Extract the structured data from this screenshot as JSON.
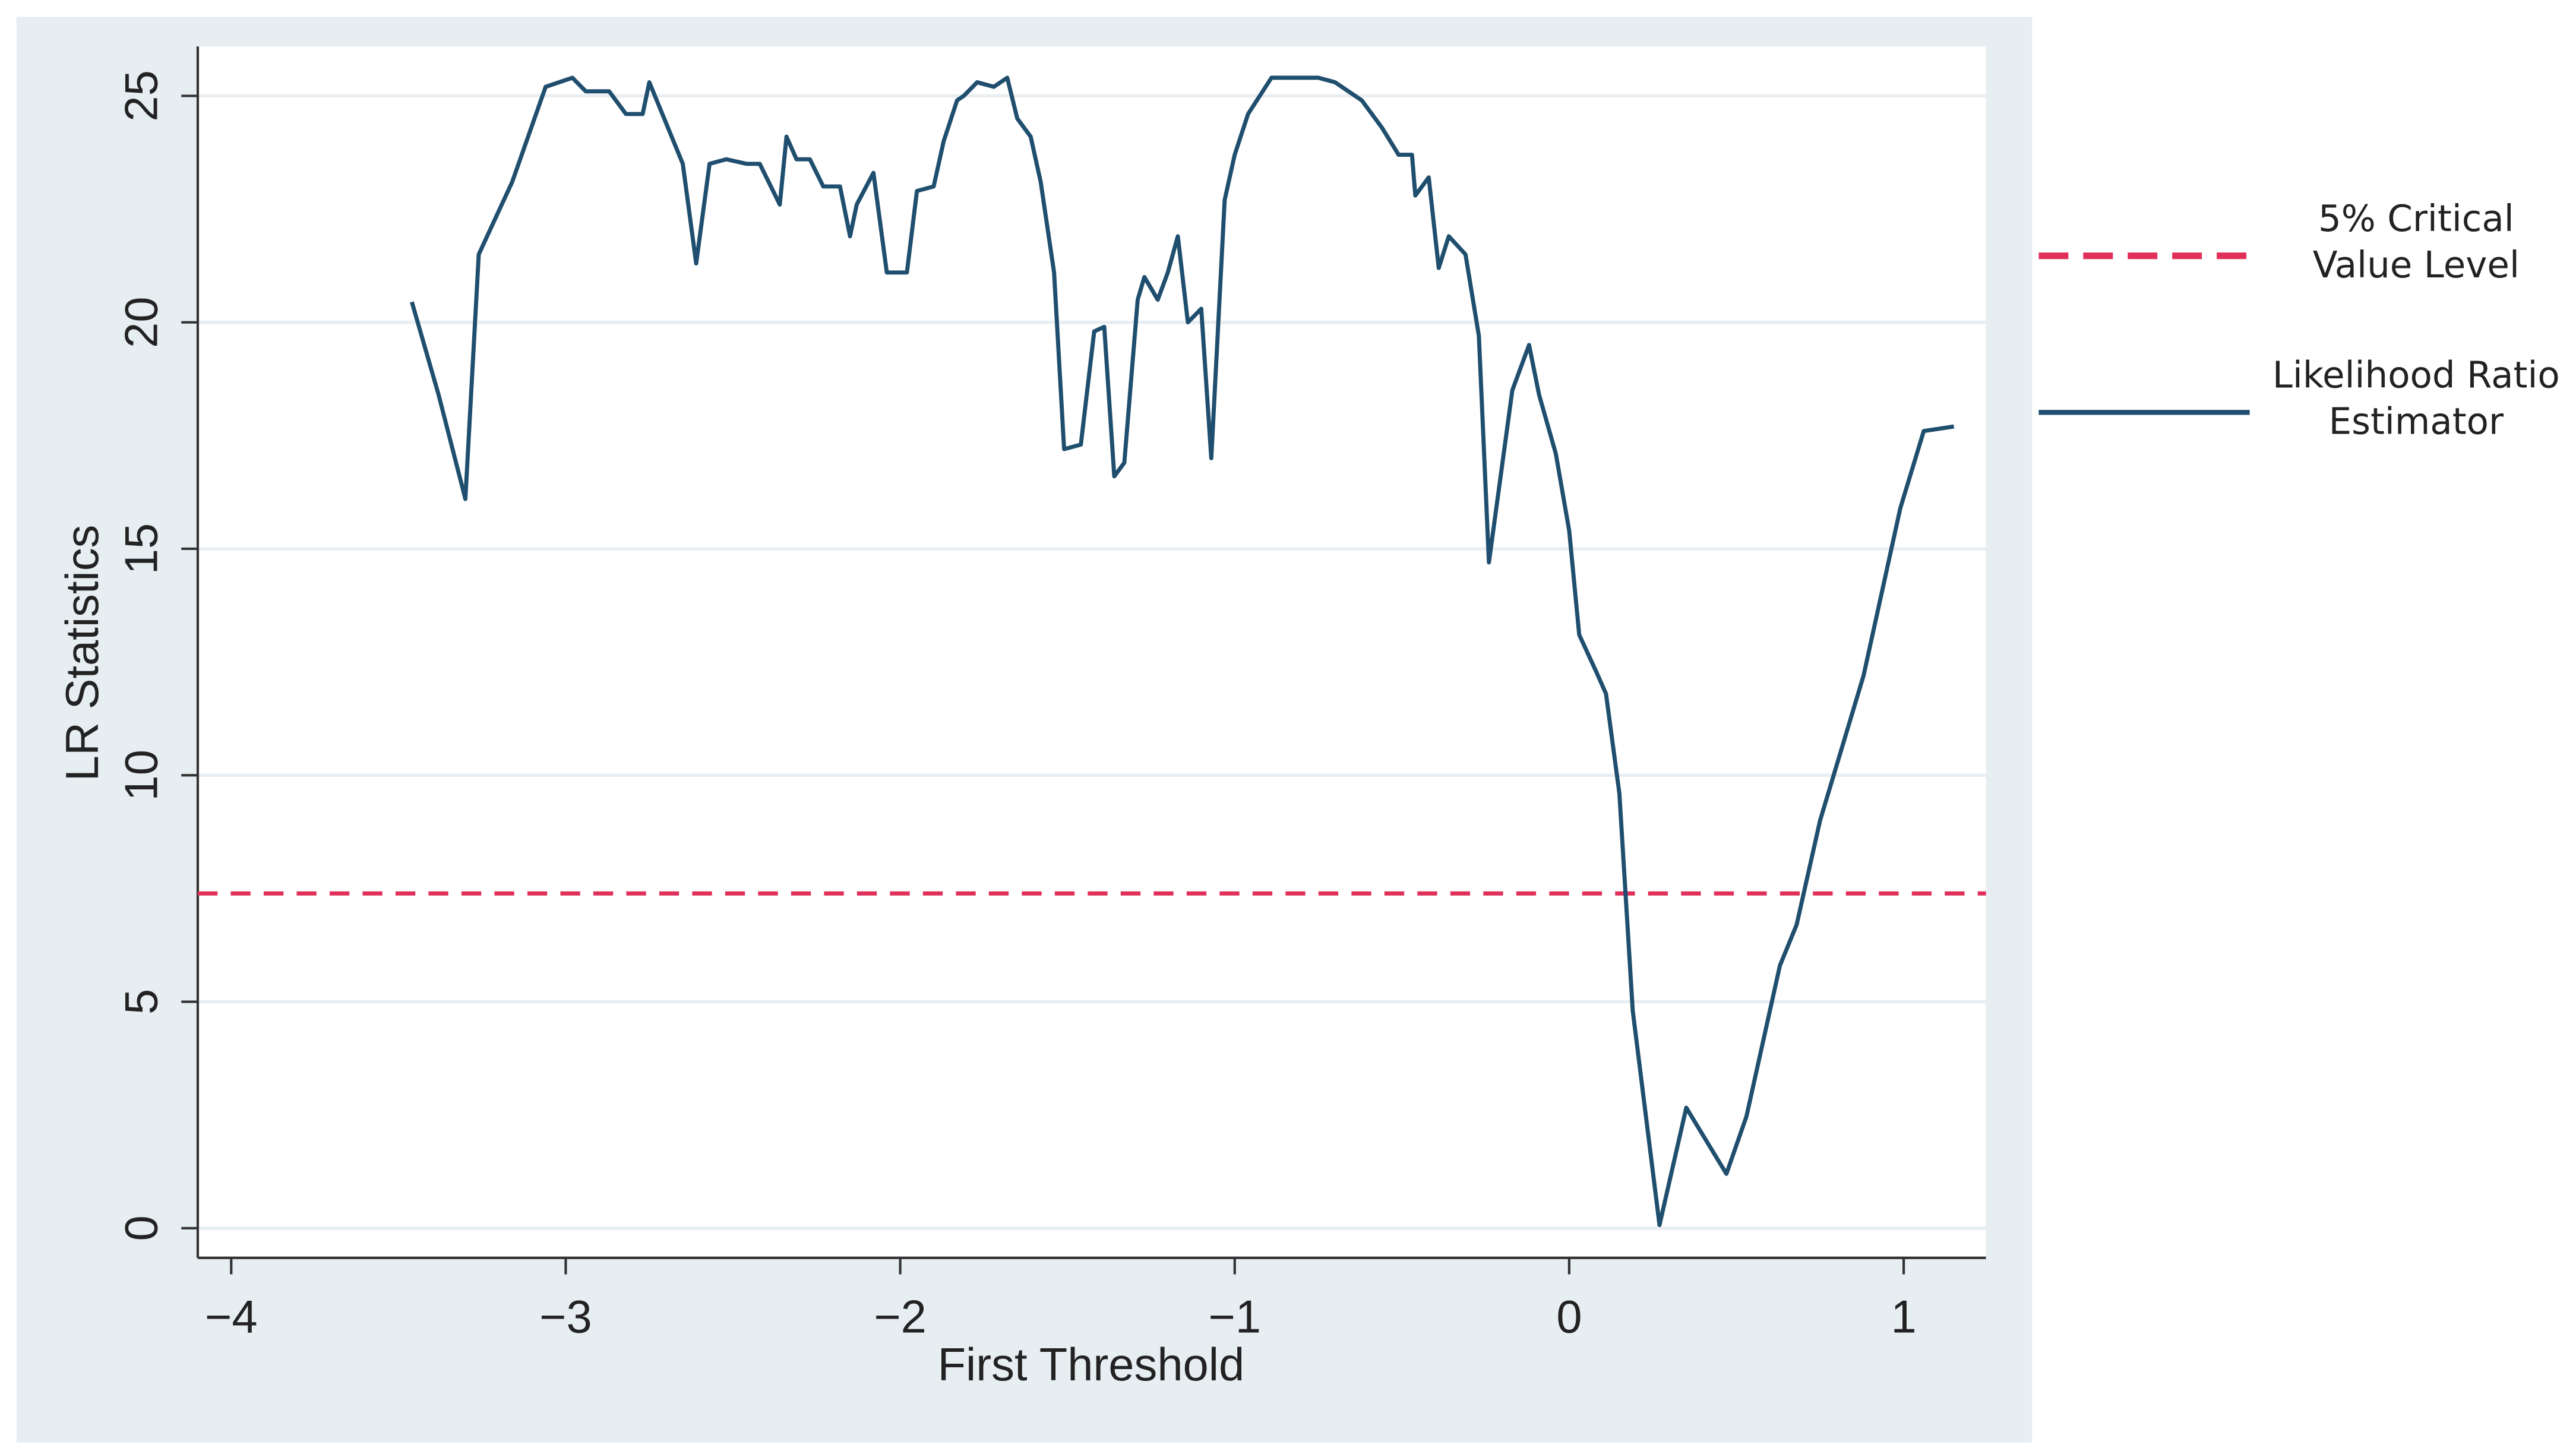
{
  "chart_data": {
    "type": "line",
    "xlabel": "First Threshold",
    "ylabel": "LR Statistics",
    "x": [
      -3.46,
      -3.38,
      -3.3,
      -3.26,
      -3.16,
      -3.06,
      -2.98,
      -2.94,
      -2.87,
      -2.82,
      -2.77,
      -2.75,
      -2.65,
      -2.61,
      -2.57,
      -2.52,
      -2.46,
      -2.42,
      -2.36,
      -2.34,
      -2.31,
      -2.27,
      -2.23,
      -2.18,
      -2.15,
      -2.13,
      -2.08,
      -2.04,
      -1.98,
      -1.95,
      -1.9,
      -1.87,
      -1.83,
      -1.81,
      -1.77,
      -1.72,
      -1.68,
      -1.65,
      -1.61,
      -1.58,
      -1.54,
      -1.51,
      -1.46,
      -1.42,
      -1.39,
      -1.36,
      -1.33,
      -1.29,
      -1.27,
      -1.23,
      -1.2,
      -1.17,
      -1.14,
      -1.1,
      -1.07,
      -1.03,
      -1.0,
      -0.96,
      -0.89,
      -0.75,
      -0.7,
      -0.62,
      -0.56,
      -0.51,
      -0.47,
      -0.46,
      -0.42,
      -0.39,
      -0.36,
      -0.31,
      -0.27,
      -0.24,
      -0.17,
      -0.12,
      -0.09,
      -0.04,
      0.0,
      0.03,
      0.08,
      0.11,
      0.15,
      0.19,
      0.27,
      0.35,
      0.47,
      0.53,
      0.63,
      0.68,
      0.75,
      0.88,
      0.99,
      1.06,
      1.15
    ],
    "series": [
      {
        "name": "Likelihood Ratio Estimator",
        "color": "#1f4e6e",
        "values": [
          20.45,
          18.4,
          16.1,
          21.5,
          23.1,
          25.2,
          25.4,
          25.1,
          25.1,
          24.6,
          24.6,
          25.3,
          23.5,
          21.3,
          23.5,
          23.6,
          23.5,
          23.5,
          22.6,
          24.1,
          23.6,
          23.6,
          23.0,
          23.0,
          21.9,
          22.6,
          23.3,
          21.1,
          21.1,
          22.9,
          23.0,
          24.0,
          24.9,
          25.0,
          25.3,
          25.2,
          25.4,
          24.5,
          24.1,
          23.1,
          21.1,
          17.2,
          17.3,
          19.8,
          19.9,
          16.6,
          16.9,
          20.5,
          21.0,
          20.5,
          21.1,
          21.9,
          20.0,
          20.3,
          17.0,
          22.7,
          23.7,
          24.6,
          25.4,
          25.4,
          25.3,
          24.9,
          24.3,
          23.7,
          23.7,
          22.8,
          23.2,
          21.2,
          21.9,
          21.5,
          19.7,
          14.7,
          18.5,
          19.5,
          18.4,
          17.1,
          15.4,
          13.1,
          12.3,
          11.8,
          9.6,
          4.8,
          0.07,
          2.66,
          1.2,
          2.47,
          5.8,
          6.7,
          9.0,
          12.2,
          15.9,
          17.6,
          17.7
        ]
      }
    ],
    "hline": {
      "name": "5% Critical Value Level",
      "value": 7.39,
      "color": "#e0305a"
    },
    "xlim": [
      -4.1,
      1.246
    ],
    "ylim": [
      -0.655,
      26.09
    ],
    "xticks": [
      {
        "value": -4,
        "label": "−4"
      },
      {
        "value": -3,
        "label": "−3"
      },
      {
        "value": -2,
        "label": "−2"
      },
      {
        "value": -1,
        "label": "−1"
      },
      0,
      1
    ],
    "yticks": [
      0,
      5,
      10,
      15,
      20,
      25
    ],
    "grid": true
  }
}
